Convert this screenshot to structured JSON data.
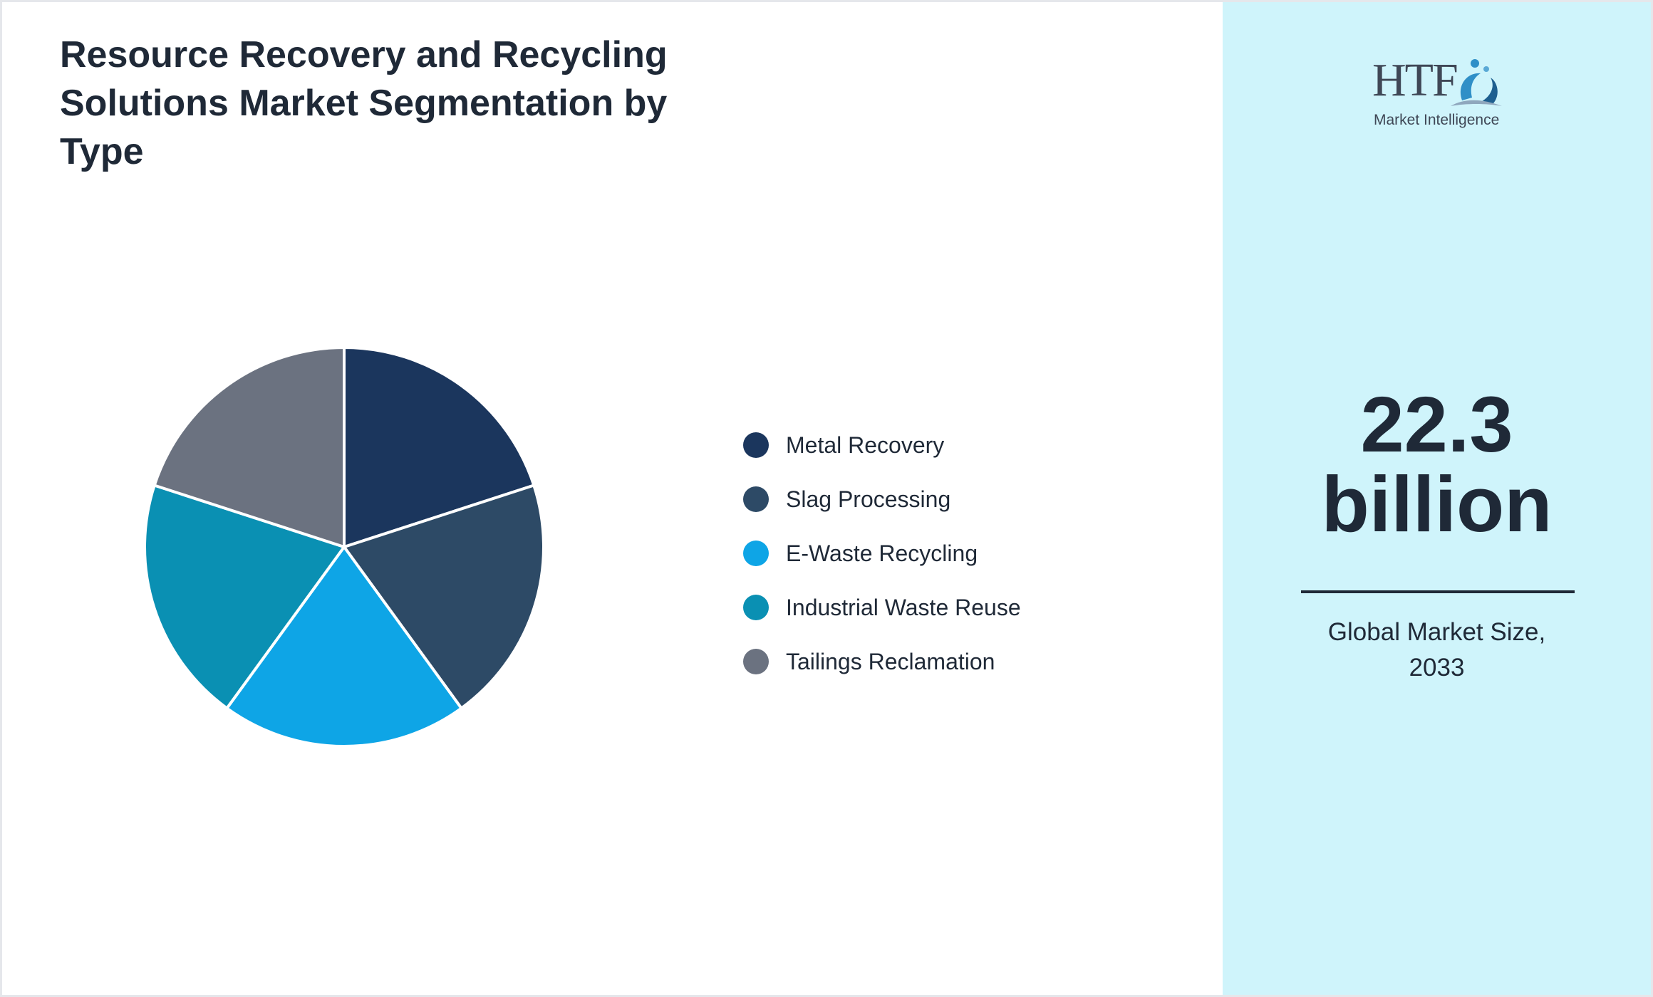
{
  "title": "Resource Recovery and Recycling Solutions Market Segmentation by Type",
  "chart_data": {
    "type": "pie",
    "title": "Resource Recovery and Recycling Solutions Market Segmentation by Type",
    "categories": [
      "Metal Recovery",
      "Slag Processing",
      "E-Waste Recycling",
      "Industrial Waste Reuse",
      "Tailings Reclamation"
    ],
    "values": [
      20,
      20,
      20,
      20,
      20
    ],
    "colors": [
      "#1b365d",
      "#2d4a66",
      "#0ea5e6",
      "#0a90b3",
      "#6b7280"
    ],
    "legend_position": "right",
    "slice_border_color": "#ffffff",
    "start_angle_deg": 0,
    "direction": "clockwise"
  },
  "legend": [
    {
      "label": "Metal Recovery",
      "color": "#1b365d"
    },
    {
      "label": "Slag Processing",
      "color": "#2d4a66"
    },
    {
      "label": "E-Waste Recycling",
      "color": "#0ea5e6"
    },
    {
      "label": "Industrial Waste Reuse",
      "color": "#0a90b3"
    },
    {
      "label": "Tailings Reclamation",
      "color": "#6b7280"
    }
  ],
  "logo": {
    "letters": "HTF",
    "subtitle": "Market Intelligence",
    "icon": "htf-logo-icon"
  },
  "kpi": {
    "value_number": "22.3",
    "value_unit": "billion",
    "caption_line1": "Global Market Size,",
    "caption_line2": "2033"
  },
  "colors": {
    "text": "#1f2937",
    "side_panel_background": "#cff4fb",
    "frame_border": "#e5e7eb"
  }
}
